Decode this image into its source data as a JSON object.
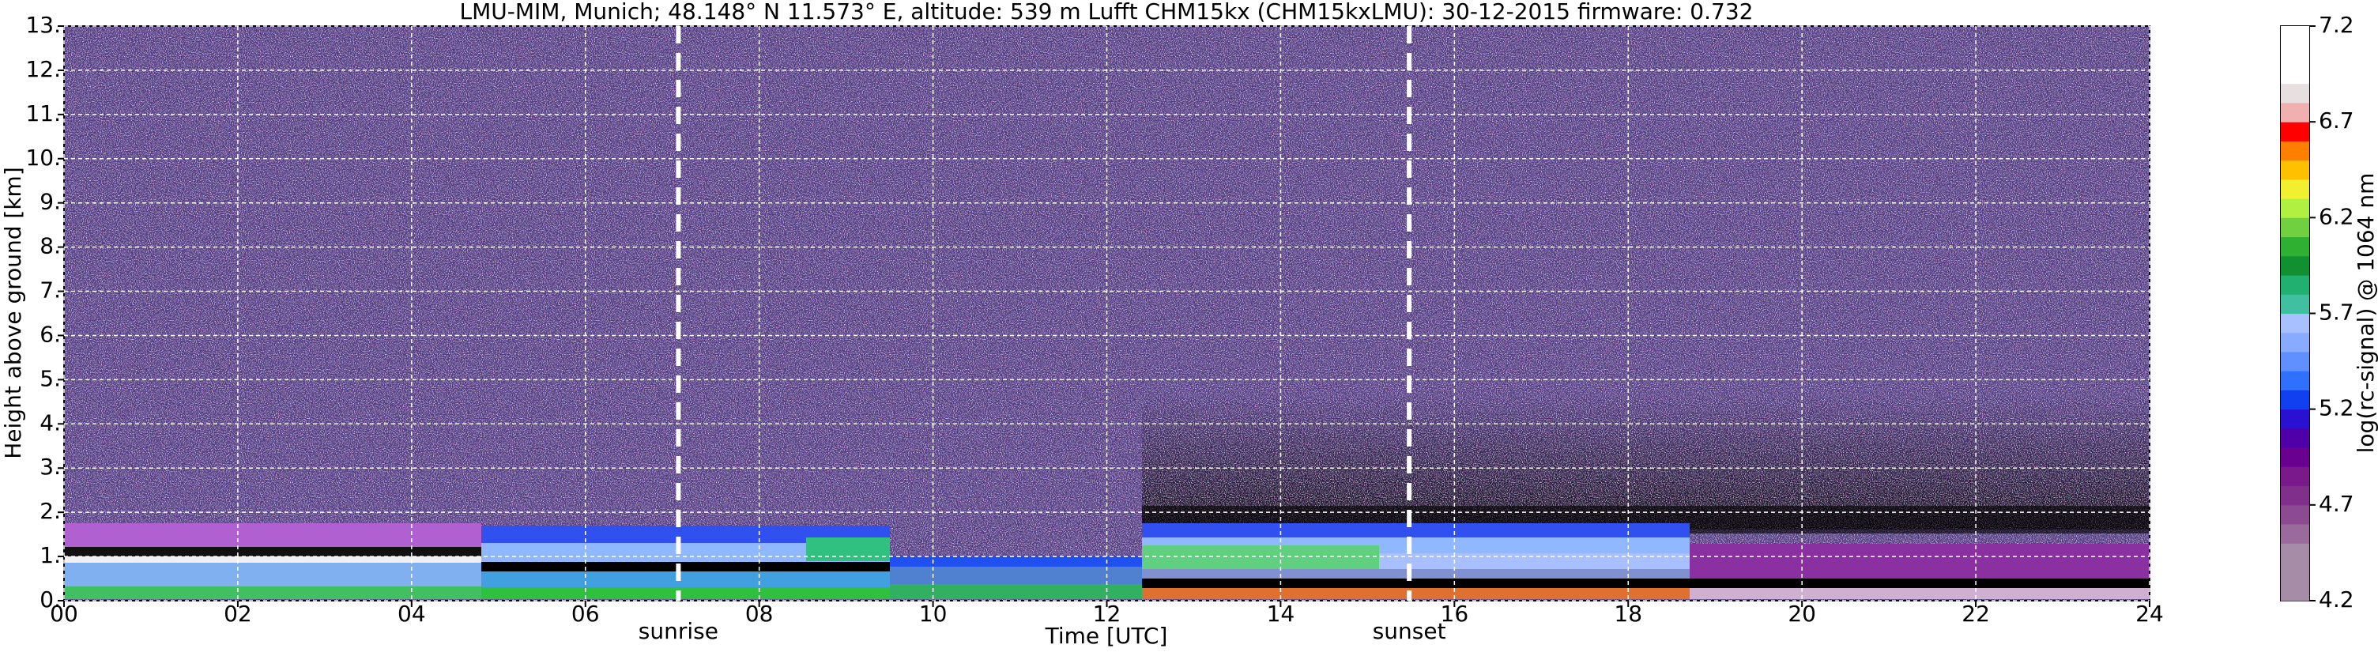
{
  "chart_data": {
    "type": "heatmap",
    "title": "LMU-MIM, Munich; 48.148° N 11.573° E, altitude: 539 m    Lufft CHM15kx (CHM15kxLMU): 30-12-2015    firmware: 0.732",
    "x_label": "Time [UTC]",
    "y_label": "Height above ground [km]",
    "xlim": [
      0,
      24
    ],
    "xticks": [
      {
        "value": 0,
        "label": "00"
      },
      {
        "value": 2,
        "label": "02"
      },
      {
        "value": 4,
        "label": "04"
      },
      {
        "value": 6,
        "label": "06"
      },
      {
        "value": 8,
        "label": "08"
      },
      {
        "value": 10,
        "label": "10"
      },
      {
        "value": 12,
        "label": "12"
      },
      {
        "value": 14,
        "label": "14"
      },
      {
        "value": 16,
        "label": "16"
      },
      {
        "value": 18,
        "label": "18"
      },
      {
        "value": 20,
        "label": "20"
      },
      {
        "value": 22,
        "label": "22"
      },
      {
        "value": 24,
        "label": "24"
      }
    ],
    "ylim": [
      0,
      13
    ],
    "yticks": [
      {
        "value": 0,
        "label": "0."
      },
      {
        "value": 1,
        "label": "1."
      },
      {
        "value": 2,
        "label": "2."
      },
      {
        "value": 3,
        "label": "3."
      },
      {
        "value": 4,
        "label": "4."
      },
      {
        "value": 5,
        "label": "5."
      },
      {
        "value": 6,
        "label": "6."
      },
      {
        "value": 7,
        "label": "7."
      },
      {
        "value": 8,
        "label": "8."
      },
      {
        "value": 9,
        "label": "9."
      },
      {
        "value": 10,
        "label": "10."
      },
      {
        "value": 11,
        "label": "11."
      },
      {
        "value": 12,
        "label": "12."
      },
      {
        "value": 13,
        "label": "13."
      }
    ],
    "grid": true,
    "annotations": [
      {
        "text": "sunrise",
        "x": 7.07
      },
      {
        "text": "sunset",
        "x": 15.48
      }
    ],
    "colorbar": {
      "label": "log(rc-signal) @ 1064 nm",
      "lim": [
        4.2,
        7.2
      ],
      "ticks": [
        4.2,
        4.7,
        5.2,
        5.7,
        6.2,
        6.7,
        7.2
      ],
      "colors": [
        "#a78ca7",
        "#a78ca7",
        "#a78ca7",
        "#9a6a9c",
        "#8c4a90",
        "#80308a",
        "#7a1a8a",
        "#6a0090",
        "#5000a8",
        "#2a10d0",
        "#1040f0",
        "#3070ff",
        "#6090ff",
        "#88aaff",
        "#a8c0ff",
        "#40c0a0",
        "#20b070",
        "#109030",
        "#30b030",
        "#70d040",
        "#b0f040",
        "#f0f030",
        "#ffc000",
        "#ff8000",
        "#ff0000",
        "#f0b0b0",
        "#e8e0e0",
        "#ffffff",
        "#ffffff",
        "#ffffff"
      ]
    }
  }
}
